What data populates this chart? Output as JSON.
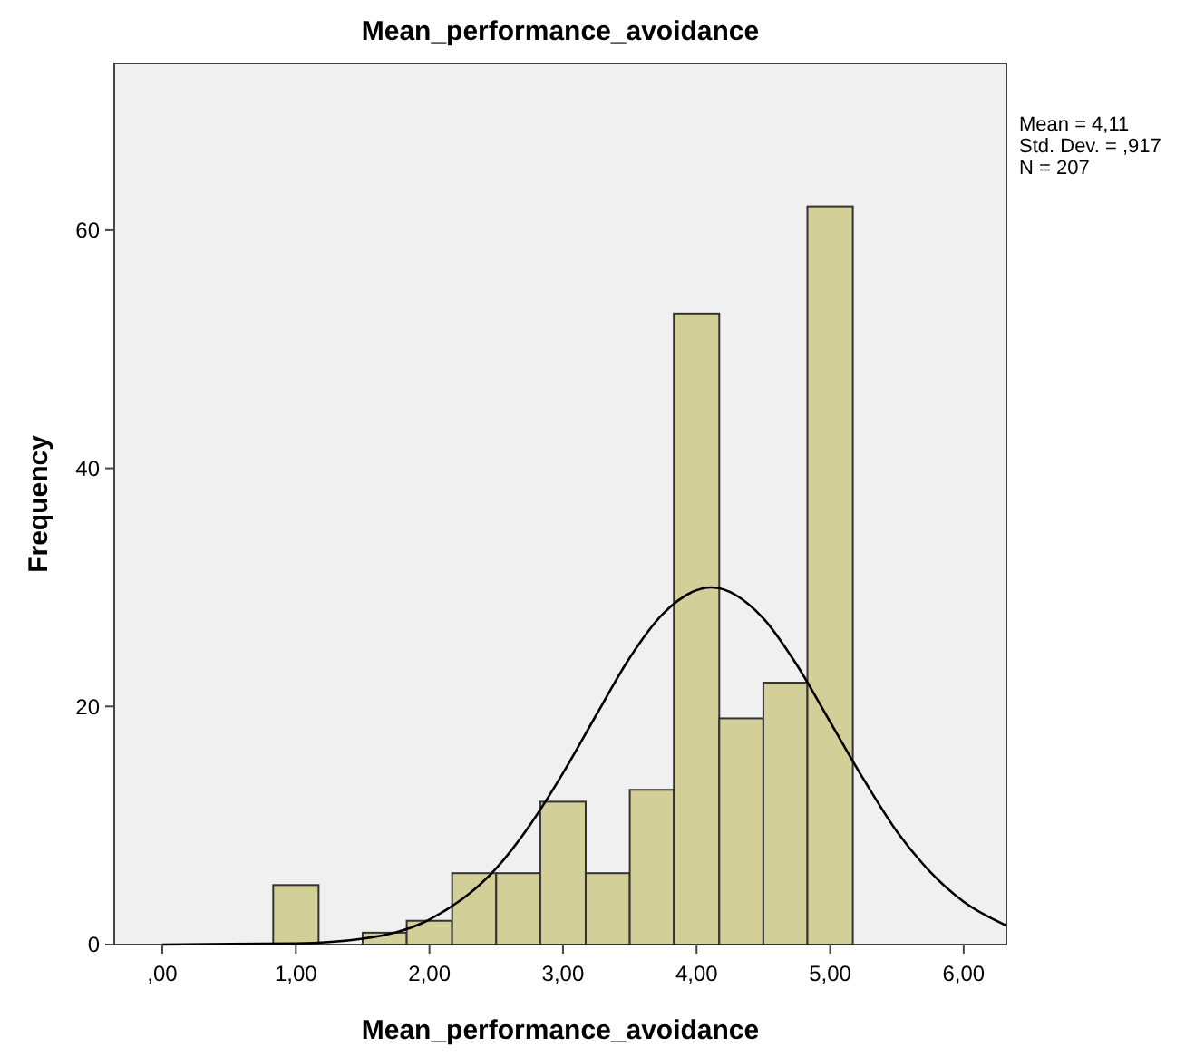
{
  "chart_data": {
    "type": "histogram",
    "title": "Mean_performance_avoidance",
    "xlabel": "Mean_performance_avoidance",
    "ylabel": "Frequency",
    "bins": [
      0.83,
      1.17,
      1.5,
      1.83,
      2.17,
      2.5,
      2.83,
      3.17,
      3.5,
      3.83,
      4.17,
      4.5,
      4.83,
      5.17
    ],
    "series": [
      {
        "color": "#d3cf98",
        "values": [
          5,
          0,
          1,
          2,
          6,
          6,
          12,
          6,
          13,
          53,
          19,
          22,
          62
        ]
      },
      {
        "type": "line",
        "color": "#000000",
        "x": [
          0,
          1,
          1.5,
          2,
          2.5,
          2.75,
          3,
          3.25,
          3.5,
          3.75,
          4.11,
          4.5,
          4.75,
          5,
          5.25,
          5.5,
          5.75,
          6,
          6.32
        ],
        "values": [
          0,
          0.1,
          0.5,
          2.1,
          6.4,
          10,
          14.4,
          19.3,
          24.1,
          27.8,
          30,
          27.4,
          23.5,
          18.7,
          13.9,
          9.5,
          6.1,
          3.6,
          1.6
        ]
      }
    ],
    "xlim": [
      -0.36,
      6.32
    ],
    "xticks": [
      {
        "value": 0,
        "label": ",00"
      },
      {
        "value": 1,
        "label": "1,00"
      },
      {
        "value": 2,
        "label": "2,00"
      },
      {
        "value": 3,
        "label": "3,00"
      },
      {
        "value": 4,
        "label": "4,00"
      },
      {
        "value": 5,
        "label": "5,00"
      },
      {
        "value": 6,
        "label": "6,00"
      }
    ],
    "ylim": [
      0,
      74
    ],
    "yticks": [
      0,
      20,
      40,
      60
    ],
    "annotations": [
      "Mean = 4,11",
      "Std. Dev. = ,917",
      "N = 207"
    ],
    "marker": "none"
  }
}
